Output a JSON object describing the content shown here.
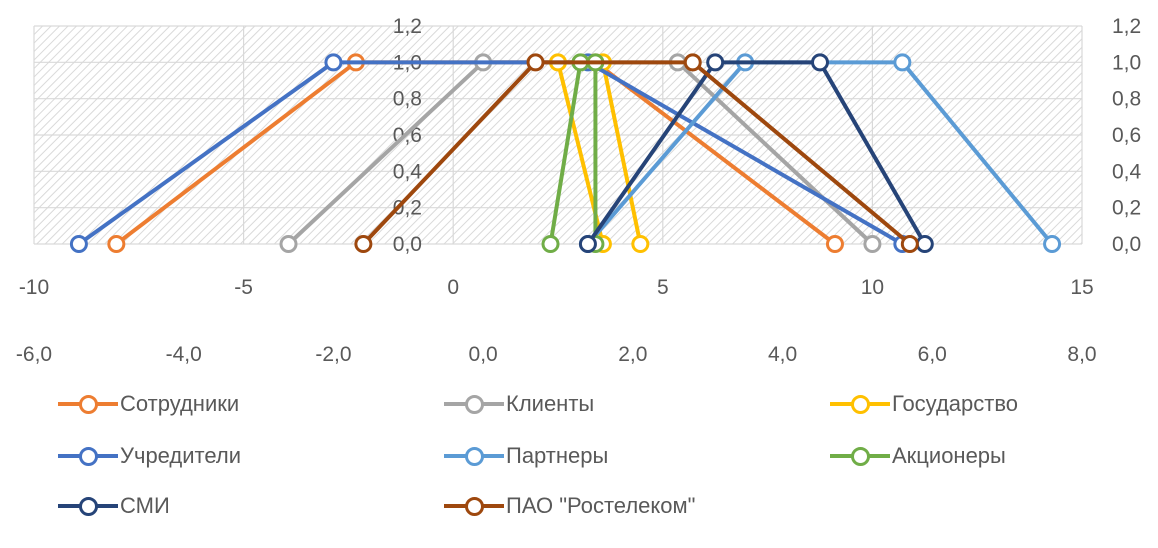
{
  "chart_data": {
    "type": "line",
    "y_axis_labels": [
      "0,0",
      "0,2",
      "0,4",
      "0,6",
      "0,8",
      "1,0",
      "1,2"
    ],
    "ylim": [
      0,
      1.2
    ],
    "x_axis_top": {
      "min": -10,
      "max": 15,
      "tick_labels": [
        "-10",
        "-5",
        "0",
        "5",
        "10",
        "15"
      ]
    },
    "x_axis_bottom": {
      "min": -6,
      "max": 8,
      "tick_labels": [
        "-6,0",
        "-4,0",
        "-2,0",
        "0,0",
        "2,0",
        "4,0",
        "6,0",
        "8,0"
      ]
    },
    "grid": true,
    "legend_position": "bottom",
    "series": [
      {
        "name": "Сотрудники",
        "color": "#ED7D31",
        "points": [
          [
            -4.9,
            0
          ],
          [
            -1.7,
            1
          ],
          [
            1.5,
            1
          ],
          [
            4.7,
            0
          ]
        ]
      },
      {
        "name": "Клиенты",
        "color": "#A5A5A5",
        "points": [
          [
            -2.6,
            0
          ],
          [
            0.0,
            1
          ],
          [
            2.6,
            1
          ],
          [
            5.2,
            0
          ]
        ]
      },
      {
        "name": "Государство",
        "color": "#FFC000",
        "points": [
          [
            1.6,
            0
          ],
          [
            1.0,
            1
          ],
          [
            1.6,
            1
          ],
          [
            2.1,
            0
          ]
        ]
      },
      {
        "name": "Учредители",
        "color": "#4472C4",
        "points": [
          [
            -5.4,
            0
          ],
          [
            -2.0,
            1
          ],
          [
            1.4,
            1
          ],
          [
            5.6,
            0
          ]
        ]
      },
      {
        "name": "Партнеры",
        "color": "#5B9BD5",
        "points": [
          [
            1.4,
            0
          ],
          [
            3.5,
            1
          ],
          [
            5.6,
            1
          ],
          [
            7.6,
            0
          ]
        ]
      },
      {
        "name": "Акционеры",
        "color": "#70AD47",
        "points": [
          [
            0.9,
            0
          ],
          [
            1.3,
            1
          ],
          [
            1.5,
            1
          ],
          [
            1.5,
            0
          ]
        ]
      },
      {
        "name": "СМИ",
        "color": "#264478",
        "points": [
          [
            1.4,
            0
          ],
          [
            3.1,
            1
          ],
          [
            4.5,
            1
          ],
          [
            5.9,
            0
          ]
        ]
      },
      {
        "name": "ПАО \"Ростелеком\"",
        "color": "#9E480E",
        "points": [
          [
            -1.6,
            0
          ],
          [
            0.7,
            1
          ],
          [
            2.8,
            1
          ],
          [
            5.7,
            0
          ]
        ]
      }
    ]
  }
}
